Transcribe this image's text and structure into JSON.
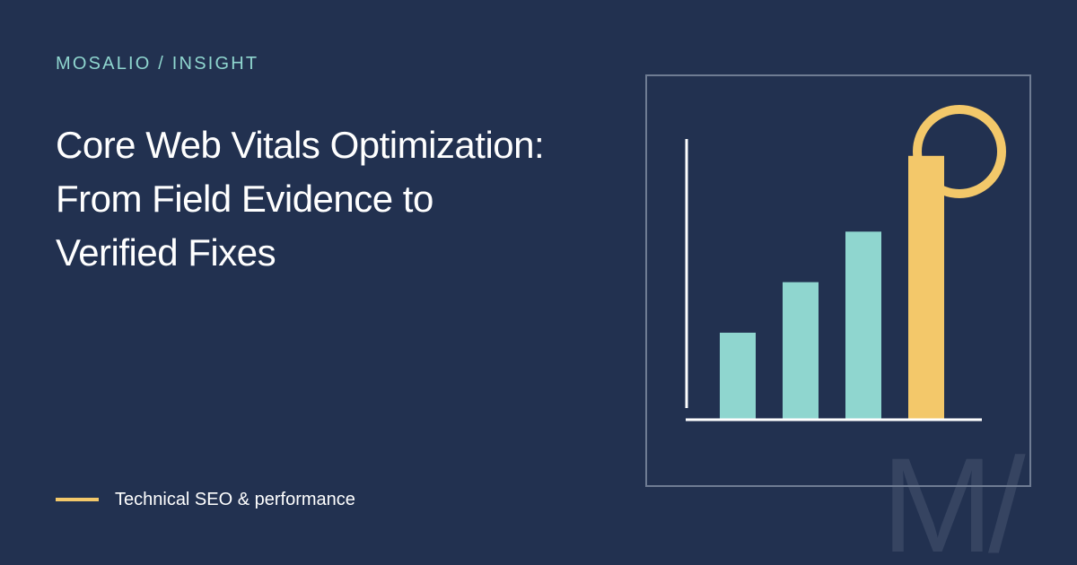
{
  "eyebrow": "MOSALIO / INSIGHT",
  "title_lines": [
    "Core Web Vitals Optimization:",
    "From Field Evidence to",
    "Verified Fixes"
  ],
  "footer": {
    "text": "Technical SEO & performance"
  },
  "watermark": "M/",
  "colors": {
    "background": "#223150",
    "accent_teal": "#8fd6cf",
    "accent_yellow": "#f3c86a",
    "frame": "#6f7c93",
    "axis": "#ffffff"
  },
  "illustration": {
    "bar_levels": [
      0.31,
      0.49,
      0.67,
      0.94
    ],
    "bar_colors": [
      "#8fd6cf",
      "#8fd6cf",
      "#8fd6cf",
      "#f3c86a"
    ],
    "highlight_ring": true
  }
}
